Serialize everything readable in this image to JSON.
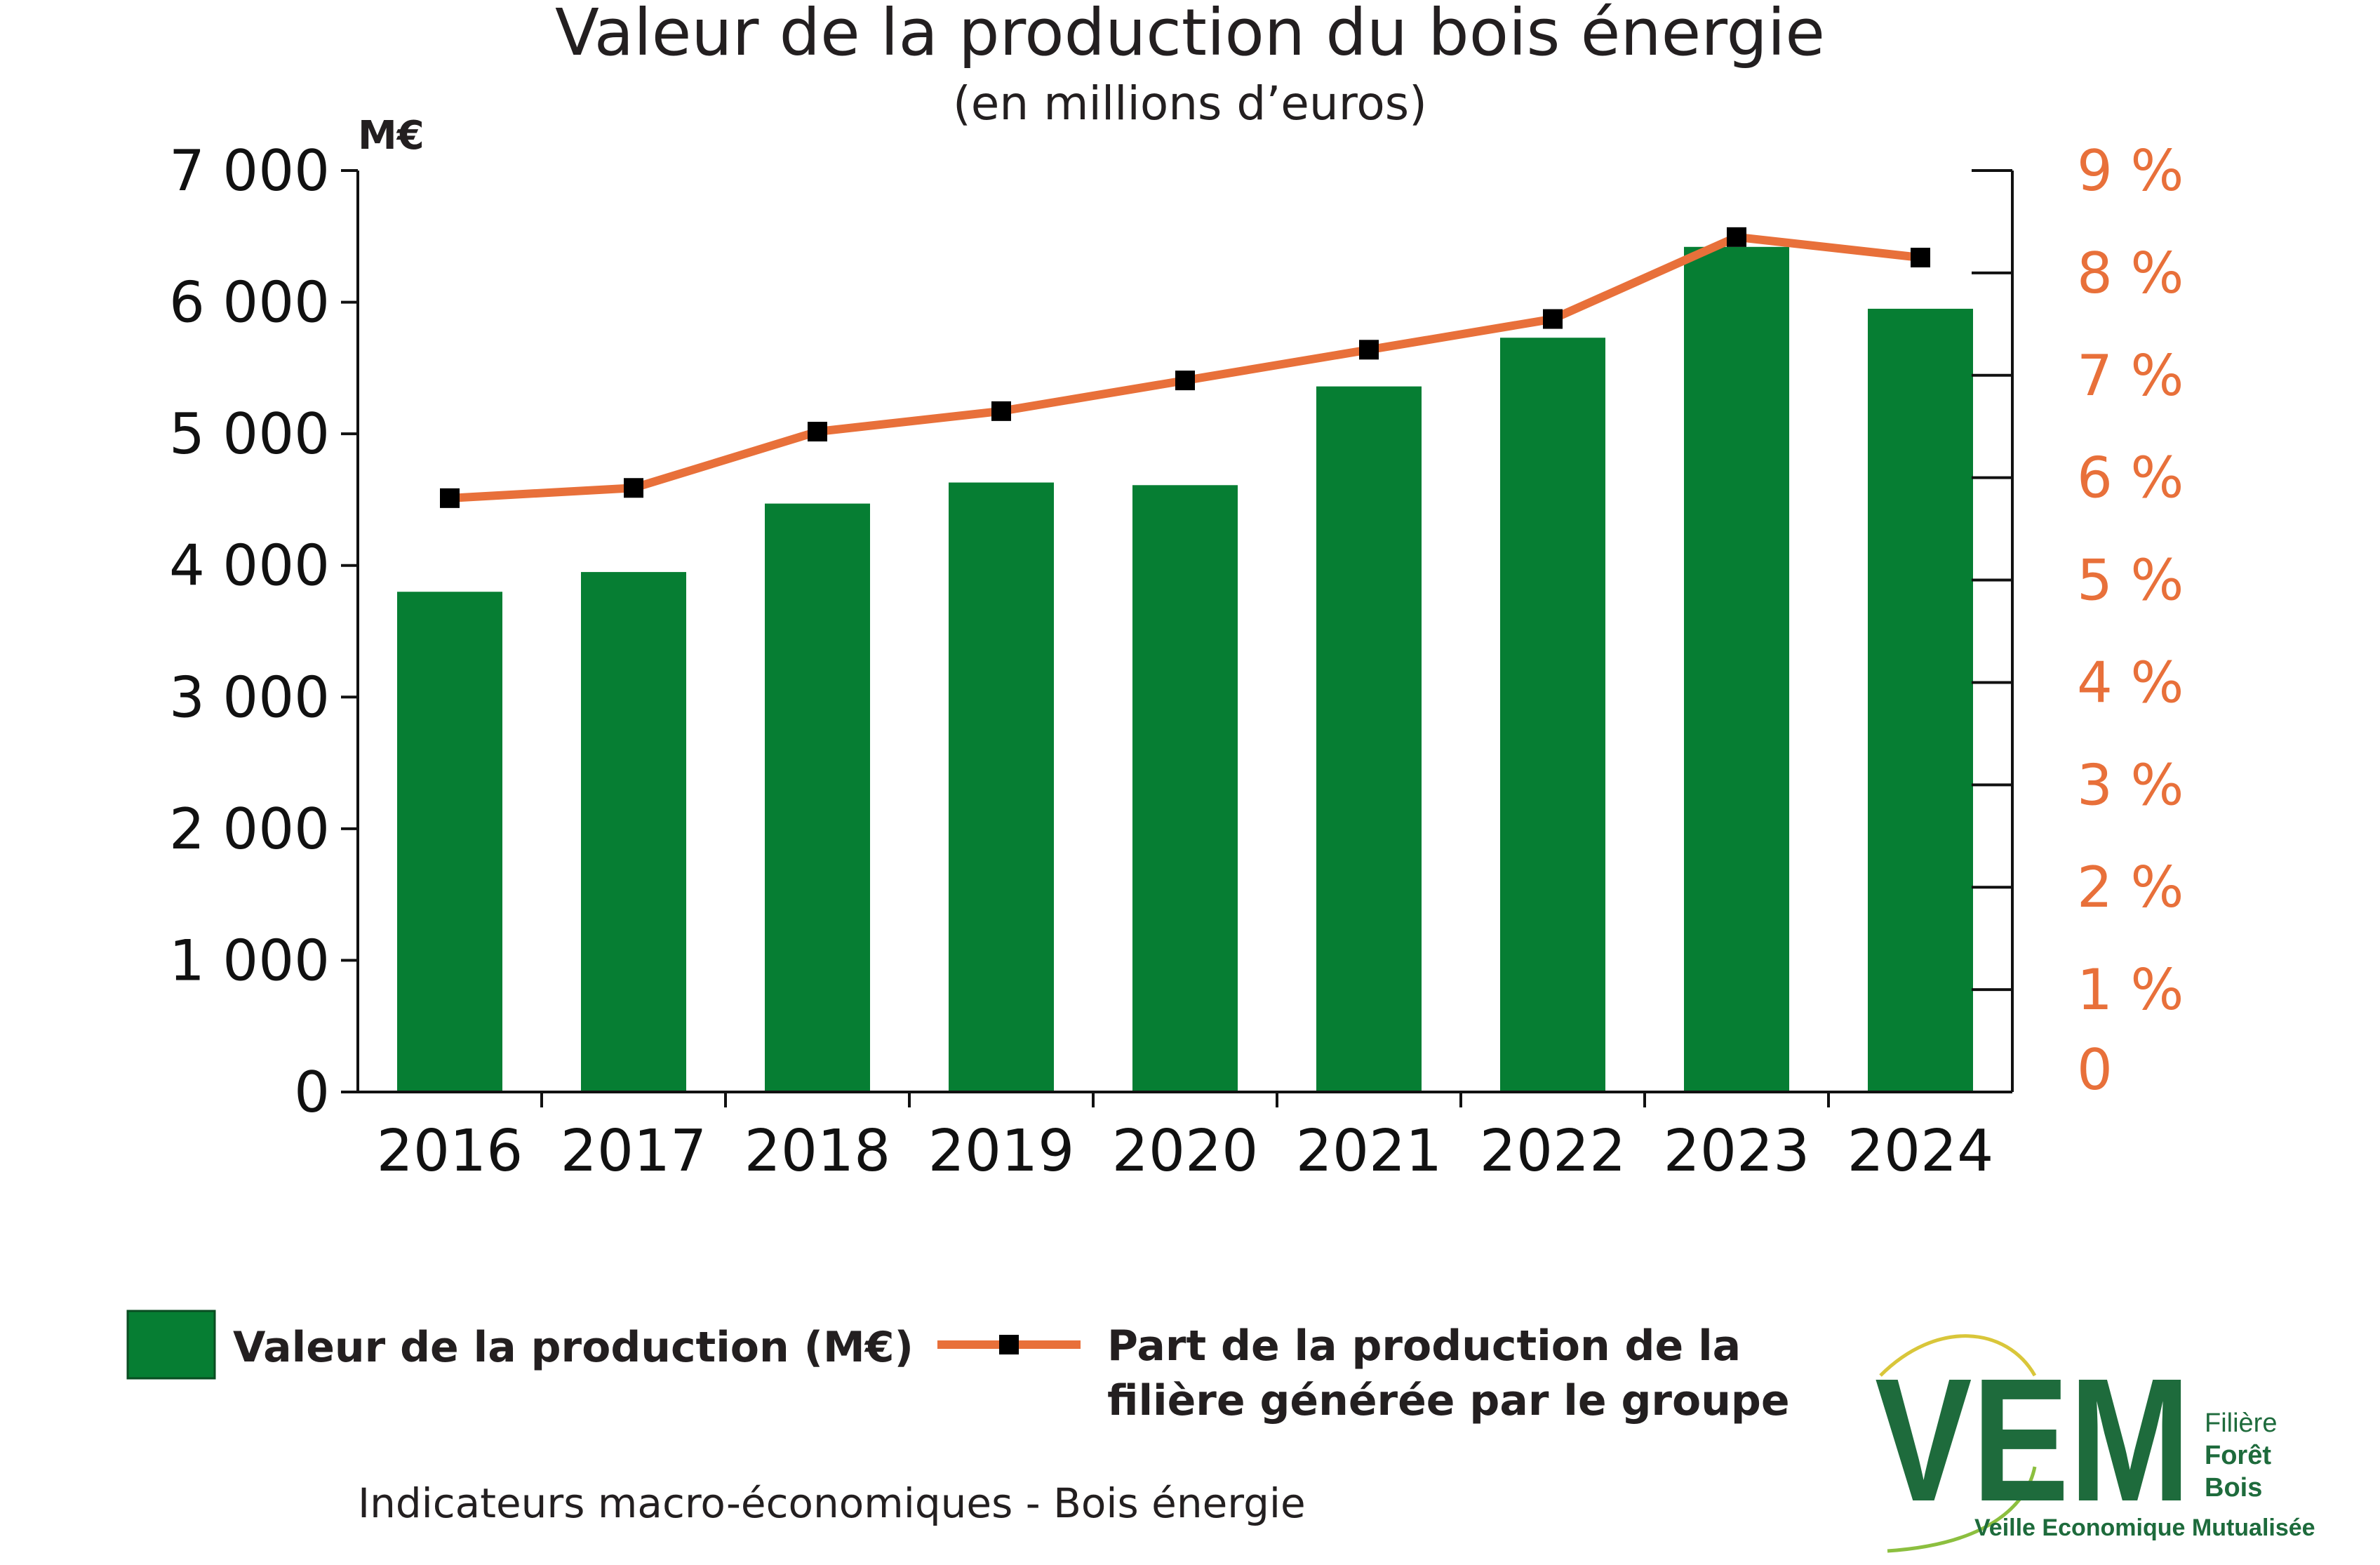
{
  "chart_data": {
    "type": "bar",
    "title": "Valeur de la production du bois énergie",
    "subtitle": "(en millions d’euros)",
    "y_unit": "M€",
    "categories": [
      "2016",
      "2017",
      "2018",
      "2019",
      "2020",
      "2021",
      "2022",
      "2023",
      "2024"
    ],
    "ylim": [
      0,
      7000
    ],
    "yticks": [
      "0",
      "1 000",
      "2 000",
      "3 000",
      "4 000",
      "5 000",
      "6 000",
      "7 000"
    ],
    "y2lim": [
      0,
      9
    ],
    "y2ticks": [
      "0",
      "1 %",
      "2 %",
      "3 %",
      "4 %",
      "5 %",
      "6 %",
      "7 %",
      "8 %",
      "9 %"
    ],
    "series": [
      {
        "name": "Valeur de la production (M€)",
        "type": "bar",
        "axis": "left",
        "color": "#067e33",
        "values": [
          3800,
          3950,
          4470,
          4630,
          4610,
          5360,
          5730,
          6420,
          5950
        ]
      },
      {
        "name": "Part de la production de la filière générée par le groupe",
        "type": "line",
        "axis": "right",
        "color": "#e8703a",
        "marker_color": "#000000",
        "values": [
          5.8,
          5.9,
          6.45,
          6.65,
          6.95,
          7.25,
          7.55,
          8.35,
          8.15
        ]
      }
    ],
    "legend_placement": "bottom",
    "grid": false
  },
  "legend": {
    "bar_label": "Valeur de la production (M€)",
    "line_label_1": "Part de la production de la",
    "line_label_2": "filière générée par le groupe"
  },
  "footer": "Indicateurs macro-économiques - Bois énergie",
  "logo": {
    "letters": "VEM",
    "side_1": "Filière",
    "side_2": "Forêt",
    "side_3": "Bois",
    "tagline": "Veille Economique Mutualisée"
  }
}
